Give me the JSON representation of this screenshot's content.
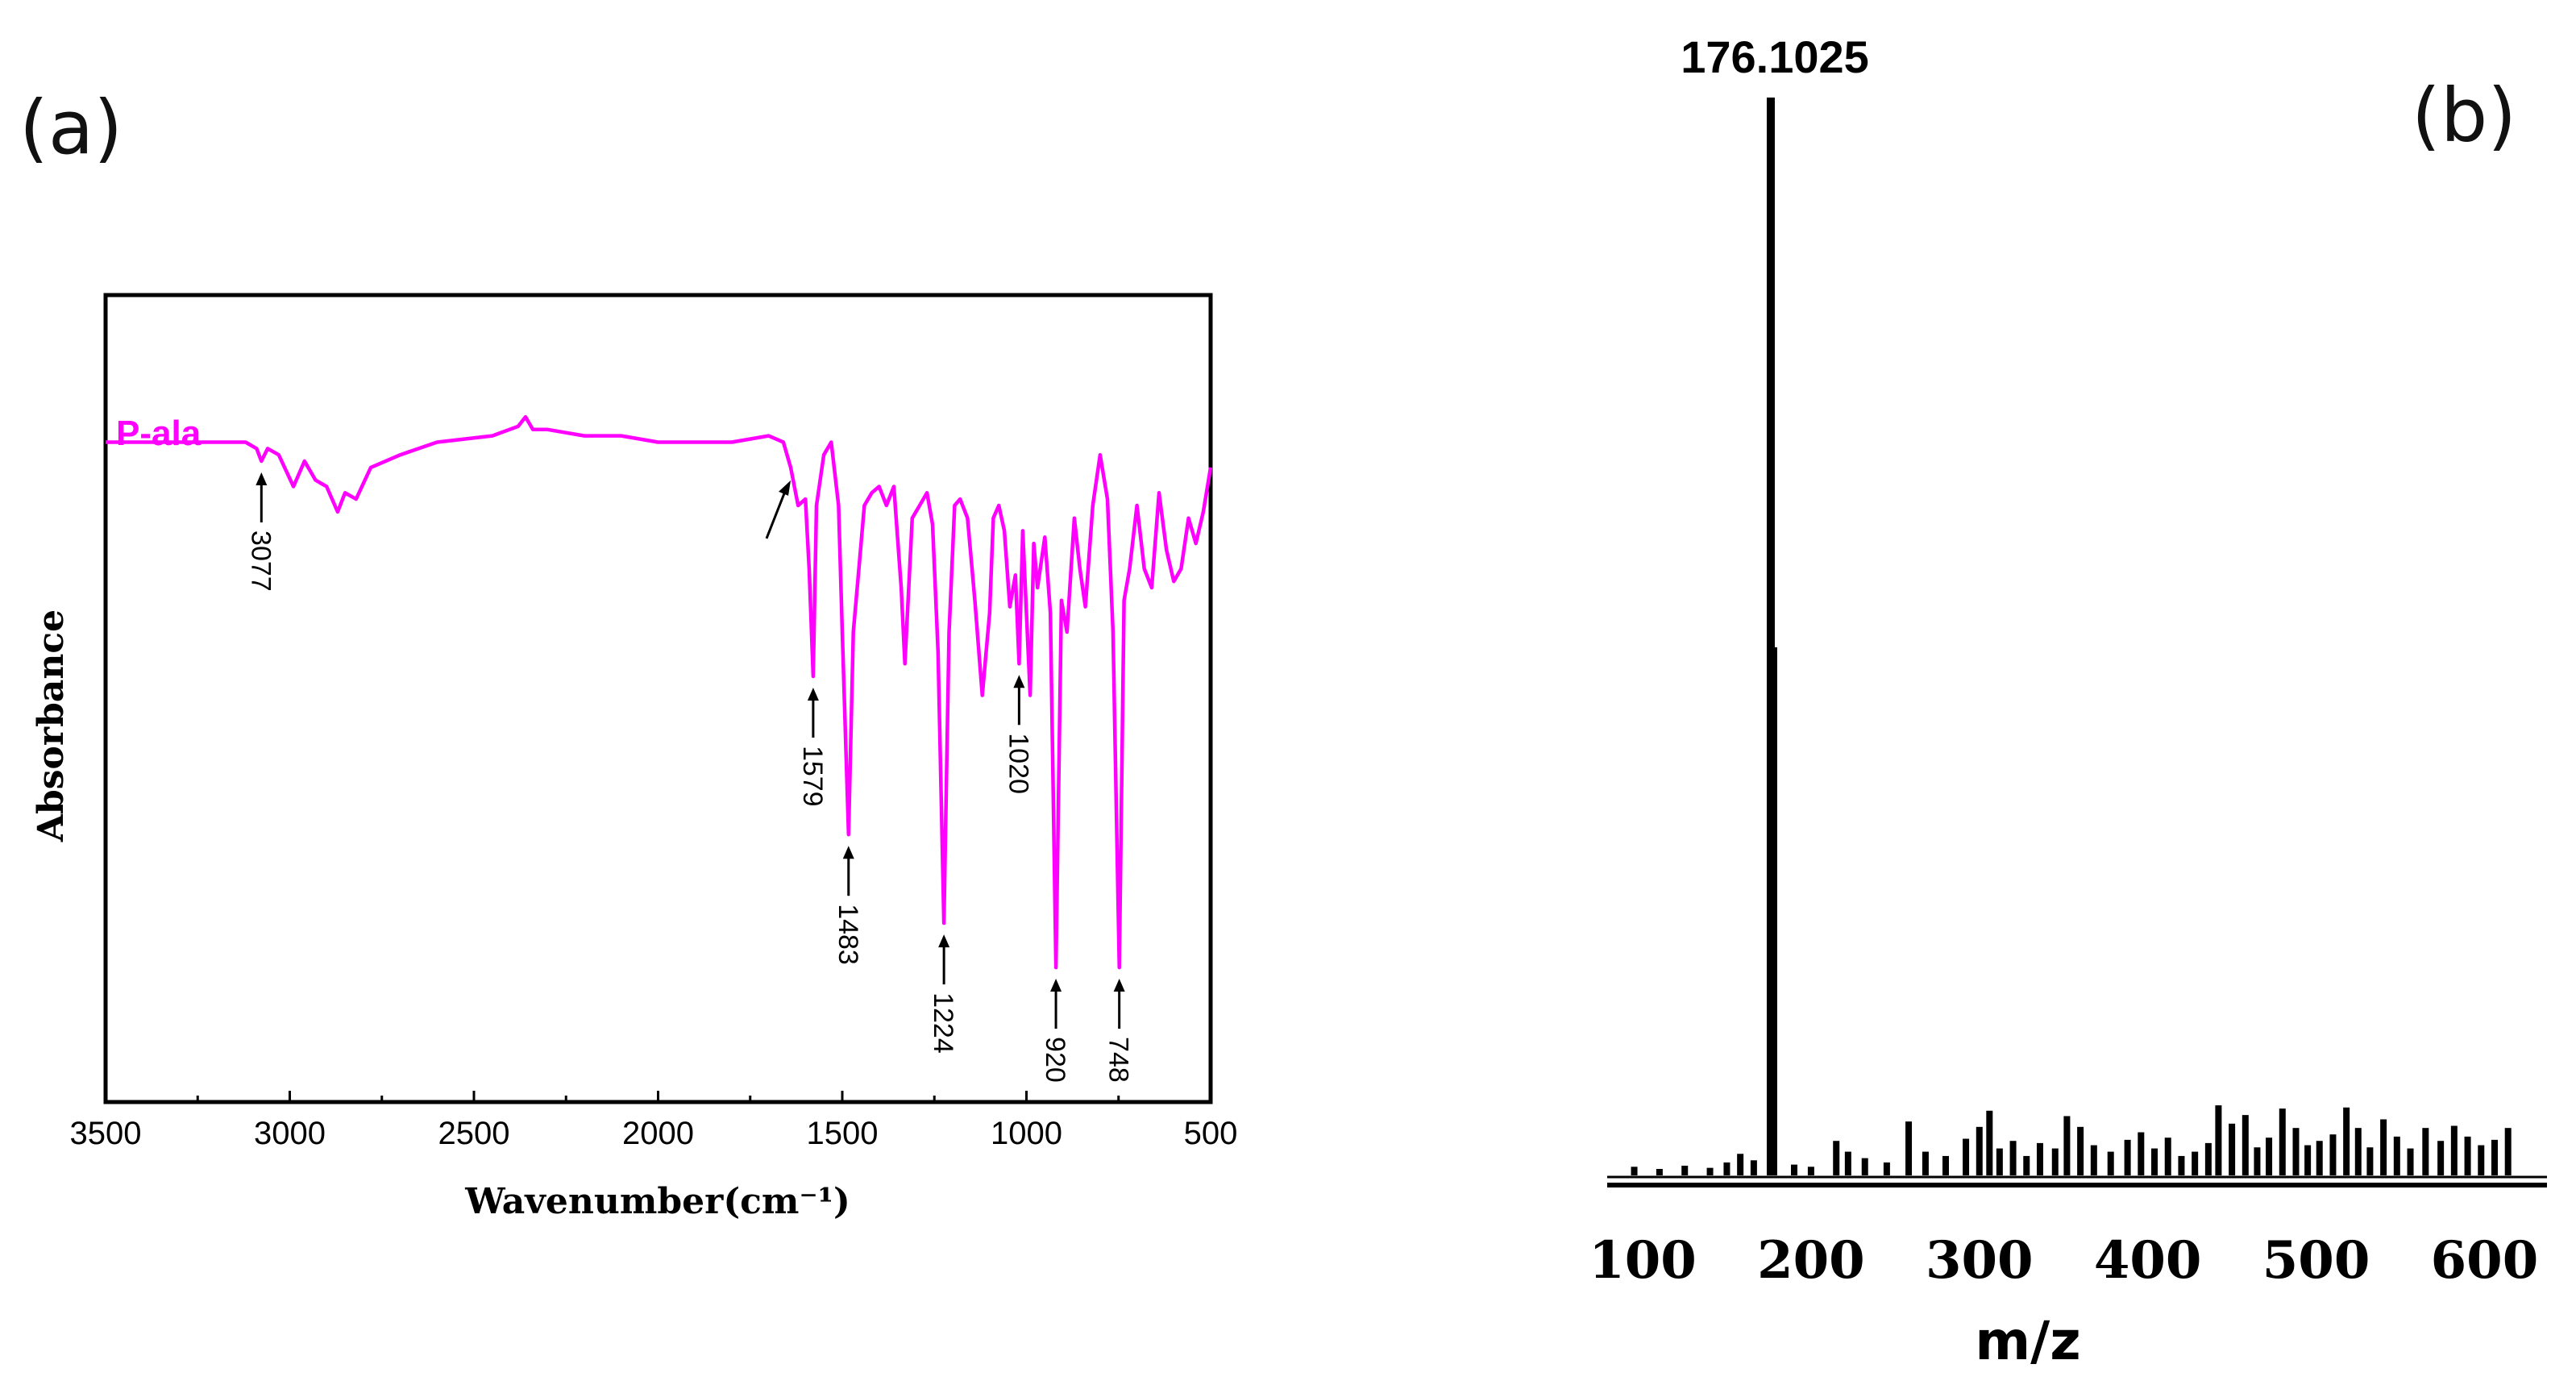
{
  "colors": {
    "ir_line": "#ff00ff",
    "axes": "#000000",
    "ms_line": "#000000"
  },
  "chart_data": [
    {
      "panel_label": "(a)",
      "type": "line",
      "title": "",
      "xlabel": "Wavenumber(cm⁻¹)",
      "ylabel": "Absorbance",
      "xlim": [
        3500,
        500
      ],
      "x_ticks": [
        3500,
        3000,
        2500,
        2000,
        1500,
        1000,
        500
      ],
      "ylim": [
        0,
        1
      ],
      "series": [
        {
          "name": "P-ala",
          "x": [
            3500,
            3200,
            3120,
            3090,
            3077,
            3060,
            3030,
            2990,
            2960,
            2930,
            2900,
            2870,
            2850,
            2820,
            2780,
            2700,
            2600,
            2450,
            2380,
            2360,
            2340,
            2300,
            2200,
            2100,
            2000,
            1900,
            1800,
            1700,
            1660,
            1640,
            1620,
            1600,
            1590,
            1579,
            1570,
            1550,
            1530,
            1510,
            1500,
            1483,
            1470,
            1455,
            1440,
            1420,
            1400,
            1380,
            1360,
            1340,
            1330,
            1310,
            1290,
            1270,
            1255,
            1240,
            1224,
            1210,
            1195,
            1180,
            1160,
            1140,
            1120,
            1100,
            1090,
            1075,
            1060,
            1045,
            1030,
            1020,
            1010,
            1000,
            990,
            980,
            970,
            950,
            935,
            920,
            905,
            890,
            870,
            855,
            840,
            820,
            800,
            780,
            765,
            748,
            735,
            720,
            700,
            680,
            660,
            640,
            620,
            600,
            580,
            560,
            540,
            520,
            500
          ],
          "y": [
            0.1,
            0.1,
            0.1,
            0.11,
            0.13,
            0.11,
            0.12,
            0.17,
            0.13,
            0.16,
            0.17,
            0.21,
            0.18,
            0.19,
            0.14,
            0.12,
            0.1,
            0.09,
            0.075,
            0.06,
            0.08,
            0.08,
            0.09,
            0.09,
            0.1,
            0.1,
            0.1,
            0.09,
            0.1,
            0.14,
            0.2,
            0.19,
            0.3,
            0.47,
            0.2,
            0.12,
            0.1,
            0.2,
            0.4,
            0.72,
            0.4,
            0.3,
            0.2,
            0.18,
            0.17,
            0.2,
            0.17,
            0.33,
            0.45,
            0.22,
            0.2,
            0.18,
            0.23,
            0.43,
            0.86,
            0.4,
            0.2,
            0.19,
            0.22,
            0.35,
            0.5,
            0.37,
            0.22,
            0.2,
            0.24,
            0.36,
            0.31,
            0.45,
            0.24,
            0.37,
            0.5,
            0.26,
            0.33,
            0.25,
            0.37,
            0.93,
            0.35,
            0.4,
            0.22,
            0.3,
            0.36,
            0.2,
            0.12,
            0.19,
            0.4,
            0.93,
            0.35,
            0.3,
            0.2,
            0.3,
            0.33,
            0.18,
            0.27,
            0.32,
            0.3,
            0.22,
            0.26,
            0.21,
            0.14
          ]
        }
      ],
      "annotations": [
        {
          "label": "3077",
          "x": 3077
        },
        {
          "label": "",
          "x": 1640
        },
        {
          "label": "1579",
          "x": 1579
        },
        {
          "label": "1483",
          "x": 1483
        },
        {
          "label": "1224",
          "x": 1224
        },
        {
          "label": "1020",
          "x": 1020
        },
        {
          "label": "920",
          "x": 920
        },
        {
          "label": "748",
          "x": 748
        }
      ]
    },
    {
      "panel_label": "(b)",
      "type": "bar",
      "title": "",
      "xlabel": "m/z",
      "ylabel": "",
      "xlim": [
        80,
        620
      ],
      "x_ticks": [
        100,
        200,
        300,
        400,
        500,
        600
      ],
      "ylim": [
        0,
        100
      ],
      "peak_label": "176.1025",
      "peak_mz": 176.1025,
      "peak_intensity": 100,
      "x": [
        95,
        110,
        125,
        140,
        150,
        158,
        166,
        178,
        190,
        200,
        215,
        222,
        232,
        245,
        258,
        268,
        280,
        292,
        300,
        306,
        312,
        320,
        328,
        336,
        345,
        352,
        360,
        368,
        378,
        388,
        396,
        404,
        412,
        420,
        428,
        436,
        442,
        450,
        458,
        465,
        472,
        480,
        488,
        495,
        502,
        510,
        518,
        525,
        532,
        540,
        548,
        556,
        565,
        574,
        582,
        590,
        598,
        606,
        614
      ],
      "values": [
        0.8,
        0.6,
        0.9,
        0.7,
        1.2,
        2,
        1.4,
        49,
        1,
        0.8,
        3.2,
        2.2,
        1.6,
        1.2,
        5,
        2.2,
        1.8,
        3.4,
        4.5,
        6,
        2.5,
        3.2,
        1.8,
        3,
        2.5,
        5.5,
        4.5,
        2.8,
        2.2,
        3.3,
        4,
        2.5,
        3.5,
        1.8,
        2.2,
        3,
        6.5,
        4.8,
        5.6,
        2.6,
        3.5,
        6.2,
        4.4,
        2.8,
        3.2,
        3.8,
        6.3,
        4.4,
        2.6,
        5.2,
        3.6,
        2.5,
        4.4,
        3.2,
        4.6,
        3.6,
        2.8,
        3.3,
        4.4
      ]
    }
  ]
}
